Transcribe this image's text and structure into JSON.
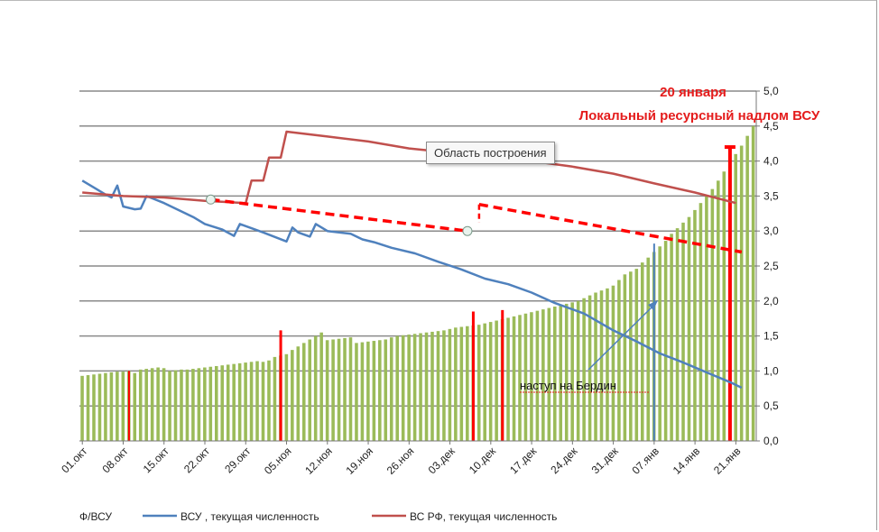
{
  "tooltip": "Область построения",
  "chart_data": {
    "type": "bar",
    "y_axis": {
      "min": 0,
      "max": 5,
      "ticks": [
        "0,0",
        "0,5",
        "1,0",
        "1,5",
        "2,0",
        "2,5",
        "3,0",
        "3,5",
        "4,0",
        "4,5",
        "5,0"
      ],
      "position": "right"
    },
    "x_tick_labels": [
      "01.окт",
      "08.окт",
      "15.окт",
      "22.окт",
      "29.окт",
      "05.ноя",
      "12.ноя",
      "19.ноя",
      "26.ноя",
      "03.дек",
      "10.дек",
      "17.дек",
      "24.дек",
      "31.дек",
      "07.янв",
      "14.янв",
      "21.янв"
    ],
    "grid": true,
    "legend_position": "bottom",
    "series": [
      {
        "name": "Ф/ВСУ",
        "type": "bar",
        "color": "#9bbb59",
        "values": [
          0.93,
          0.94,
          0.95,
          0.96,
          0.97,
          0.98,
          0.99,
          0.99,
          1.0,
          0.97,
          1.02,
          1.03,
          1.04,
          1.05,
          1.04,
          1.0,
          1.01,
          1.02,
          1.02,
          1.03,
          1.04,
          1.05,
          1.06,
          1.07,
          1.08,
          1.09,
          1.1,
          1.11,
          1.12,
          1.13,
          1.14,
          1.13,
          1.15,
          1.2,
          1.22,
          1.24,
          1.3,
          1.35,
          1.4,
          1.45,
          1.5,
          1.55,
          1.44,
          1.45,
          1.46,
          1.47,
          1.48,
          1.4,
          1.41,
          1.42,
          1.43,
          1.44,
          1.45,
          1.48,
          1.5,
          1.51,
          1.52,
          1.53,
          1.54,
          1.55,
          1.56,
          1.57,
          1.58,
          1.6,
          1.62,
          1.63,
          1.64,
          1.65,
          1.66,
          1.68,
          1.7,
          1.72,
          1.74,
          1.76,
          1.78,
          1.8,
          1.82,
          1.84,
          1.86,
          1.88,
          1.9,
          1.92,
          1.94,
          1.96,
          1.98,
          2.0,
          2.04,
          2.08,
          2.12,
          2.15,
          2.18,
          2.22,
          2.3,
          2.38,
          2.42,
          2.46,
          2.55,
          2.62,
          2.7,
          2.78,
          2.86,
          2.96,
          3.04,
          3.12,
          3.2,
          3.3,
          3.4,
          3.5,
          3.6,
          3.72,
          3.85,
          3.98,
          4.1,
          4.22,
          4.36,
          4.5
        ]
      },
      {
        "name": "ВСУ , текущая численность",
        "type": "line",
        "color": "#4f81bd",
        "points": [
          [
            "01.окт",
            3.72
          ],
          [
            "03.окт",
            3.62
          ],
          [
            "05.окт",
            3.52
          ],
          [
            "06.окт",
            3.48
          ],
          [
            "07.окт",
            3.65
          ],
          [
            "08.окт",
            3.35
          ],
          [
            "10.окт",
            3.31
          ],
          [
            "11.окт",
            3.32
          ],
          [
            "12.окт",
            3.5
          ],
          [
            "15.окт",
            3.4
          ],
          [
            "18.окт",
            3.28
          ],
          [
            "20.окт",
            3.2
          ],
          [
            "22.окт",
            3.1
          ],
          [
            "25.окт",
            3.02
          ],
          [
            "27.окт",
            2.93
          ],
          [
            "28.окт",
            3.1
          ],
          [
            "01.ноя",
            2.98
          ],
          [
            "05.ноя",
            2.85
          ],
          [
            "06.ноя",
            3.05
          ],
          [
            "07.ноя",
            2.98
          ],
          [
            "09.ноя",
            2.92
          ],
          [
            "10.ноя",
            3.1
          ],
          [
            "12.ноя",
            3.0
          ],
          [
            "14.ноя",
            2.98
          ],
          [
            "16.ноя",
            2.96
          ],
          [
            "18.ноя",
            2.88
          ],
          [
            "20.ноя",
            2.84
          ],
          [
            "23.ноя",
            2.76
          ],
          [
            "27.ноя",
            2.68
          ],
          [
            "01.дек",
            2.56
          ],
          [
            "05.дек",
            2.45
          ],
          [
            "09.дек",
            2.32
          ],
          [
            "13.дек",
            2.24
          ],
          [
            "17.дек",
            2.12
          ],
          [
            "21.дек",
            1.97
          ],
          [
            "26.дек",
            1.82
          ],
          [
            "31.дек",
            1.58
          ],
          [
            "04.янв",
            1.42
          ],
          [
            "08.янв",
            1.25
          ],
          [
            "12.янв",
            1.12
          ],
          [
            "16.янв",
            0.98
          ],
          [
            "20.янв",
            0.84
          ],
          [
            "22.янв",
            0.76
          ]
        ]
      },
      {
        "name": "ВС РФ, текущая численность",
        "type": "line",
        "color": "#c0504d",
        "points": [
          [
            "01.окт",
            3.55
          ],
          [
            "08.окт",
            3.5
          ],
          [
            "15.окт",
            3.48
          ],
          [
            "22.окт",
            3.43
          ],
          [
            "29.окт",
            3.4
          ],
          [
            "30.окт",
            3.72
          ],
          [
            "01.ноя",
            3.72
          ],
          [
            "02.ноя",
            4.05
          ],
          [
            "04.ноя",
            4.05
          ],
          [
            "05.ноя",
            4.42
          ],
          [
            "12.ноя",
            4.35
          ],
          [
            "19.ноя",
            4.28
          ],
          [
            "26.ноя",
            4.18
          ],
          [
            "03.дек",
            4.12
          ],
          [
            "10.дек",
            4.05
          ],
          [
            "17.дек",
            4.0
          ],
          [
            "24.дек",
            3.92
          ],
          [
            "31.дек",
            3.82
          ],
          [
            "07.янв",
            3.68
          ],
          [
            "14.янв",
            3.55
          ],
          [
            "21.янв",
            3.4
          ]
        ]
      }
    ],
    "annotations": [
      {
        "text": "20 января",
        "color": "#e41c1c"
      },
      {
        "text": "Локальный ресурсный надлом ВСУ",
        "color": "#e41c1c"
      },
      {
        "text": "наступ  на  Бердин",
        "color": "#000000"
      }
    ],
    "red_markers": [
      "09.окт",
      "04.ноя",
      "07.дек",
      "12.дек",
      "20.янв"
    ],
    "blue_marker": "07.янв",
    "dashed_trend": [
      {
        "from": [
          "23.окт",
          3.45
        ],
        "to": [
          "06.дек",
          3.0
        ]
      },
      {
        "from": [
          "08.дек",
          3.38
        ],
        "to": [
          "22.янв",
          2.7
        ]
      }
    ]
  }
}
